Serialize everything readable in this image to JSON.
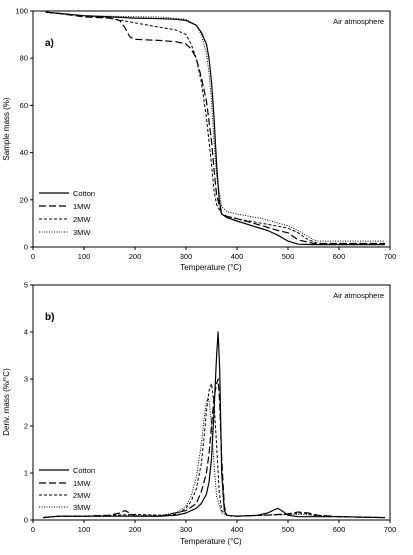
{
  "chart_data": [
    {
      "type": "line",
      "panel_label": "a)",
      "annotation": "Air atmosphere",
      "xlabel": "Temperature (°C)",
      "ylabel": "Sample mass (%)",
      "xlim": [
        0,
        700
      ],
      "ylim": [
        0,
        100
      ],
      "xticks": [
        0,
        100,
        200,
        300,
        400,
        500,
        600,
        700
      ],
      "yticks": [
        0,
        20,
        40,
        60,
        80,
        100
      ],
      "grid": false,
      "legend_position": "lower-left",
      "series": [
        {
          "name": "Cotton",
          "style": "solid",
          "x": [
            25,
            50,
            100,
            150,
            200,
            250,
            280,
            300,
            320,
            330,
            340,
            345,
            350,
            355,
            360,
            365,
            370,
            380,
            400,
            430,
            460,
            480,
            500,
            520,
            550,
            600,
            650,
            690
          ],
          "y": [
            99.5,
            99,
            98,
            97.5,
            97,
            96.8,
            96.5,
            96,
            94,
            91,
            86,
            80,
            70,
            55,
            35,
            20,
            14,
            12.5,
            11,
            9,
            7,
            5,
            2.5,
            1.2,
            1,
            1,
            1,
            1
          ]
        },
        {
          "name": "1MW",
          "style": "dashed",
          "x": [
            25,
            50,
            100,
            150,
            170,
            180,
            190,
            200,
            250,
            280,
            300,
            310,
            320,
            330,
            340,
            350,
            355,
            360,
            370,
            380,
            400,
            450,
            480,
            500,
            520,
            550,
            600,
            690
          ],
          "y": [
            99.5,
            99,
            97.5,
            97,
            96,
            93,
            89,
            88,
            87.5,
            87,
            86,
            84,
            80,
            72,
            62,
            45,
            33,
            22,
            14,
            13,
            12,
            9,
            7,
            6,
            3,
            1.5,
            1.5,
            1.5
          ]
        },
        {
          "name": "2MW",
          "style": "short-dashed",
          "x": [
            25,
            50,
            100,
            150,
            200,
            250,
            280,
            300,
            310,
            320,
            330,
            340,
            350,
            355,
            360,
            370,
            380,
            400,
            450,
            500,
            520,
            540,
            560,
            600,
            690
          ],
          "y": [
            99.5,
            99,
            98,
            97,
            95,
            93,
            92,
            90,
            86,
            80,
            70,
            55,
            35,
            24,
            18,
            14,
            13,
            12,
            10,
            8,
            6,
            3,
            1.5,
            1.5,
            1.5
          ]
        },
        {
          "name": "3MW",
          "style": "dotted",
          "x": [
            25,
            50,
            100,
            150,
            200,
            250,
            300,
            320,
            330,
            340,
            345,
            350,
            355,
            360,
            370,
            380,
            400,
            450,
            500,
            520,
            550,
            560,
            600,
            690
          ],
          "y": [
            99.5,
            99,
            98,
            97.8,
            97.6,
            97.4,
            96.5,
            94,
            90,
            82,
            74,
            62,
            45,
            30,
            17,
            15,
            14,
            12,
            9,
            7,
            3,
            2.5,
            2.5,
            2.5
          ]
        }
      ]
    },
    {
      "type": "line",
      "panel_label": "b)",
      "annotation": "Air atmosphere",
      "xlabel": "Temperature (°C)",
      "ylabel": "Deriv. mass (%/°C)",
      "xlim": [
        0,
        700
      ],
      "ylim": [
        0,
        5
      ],
      "xticks": [
        0,
        100,
        200,
        300,
        400,
        500,
        600,
        700
      ],
      "yticks": [
        0,
        1,
        2,
        3,
        4,
        5
      ],
      "grid": false,
      "legend_position": "lower-left",
      "series": [
        {
          "name": "Cotton",
          "style": "solid",
          "x": [
            20,
            50,
            100,
            200,
            250,
            280,
            300,
            320,
            330,
            340,
            345,
            350,
            355,
            360,
            363,
            366,
            370,
            375,
            380,
            400,
            440,
            460,
            470,
            480,
            490,
            500,
            520,
            550,
            600,
            690
          ],
          "y": [
            0.05,
            0.08,
            0.08,
            0.08,
            0.08,
            0.1,
            0.15,
            0.25,
            0.35,
            0.55,
            0.8,
            1.3,
            2.3,
            3.5,
            4.0,
            3.2,
            1.0,
            0.2,
            0.1,
            0.08,
            0.1,
            0.15,
            0.2,
            0.25,
            0.18,
            0.1,
            0.07,
            0.07,
            0.07,
            0.05
          ]
        },
        {
          "name": "1MW",
          "style": "dashed",
          "x": [
            20,
            50,
            100,
            150,
            170,
            180,
            190,
            200,
            250,
            300,
            320,
            330,
            340,
            345,
            350,
            355,
            360,
            363,
            366,
            370,
            375,
            380,
            400,
            450,
            500,
            520,
            540,
            560,
            600,
            690
          ],
          "y": [
            0.05,
            0.08,
            0.08,
            0.1,
            0.15,
            0.2,
            0.15,
            0.08,
            0.08,
            0.2,
            0.35,
            0.6,
            1.0,
            1.4,
            2.0,
            2.6,
            2.9,
            3.0,
            2.5,
            1.3,
            0.3,
            0.1,
            0.08,
            0.1,
            0.13,
            0.17,
            0.15,
            0.1,
            0.07,
            0.05
          ]
        },
        {
          "name": "2MW",
          "style": "short-dashed",
          "x": [
            20,
            50,
            100,
            150,
            200,
            250,
            280,
            300,
            310,
            320,
            330,
            335,
            340,
            345,
            350,
            355,
            360,
            365,
            370,
            380,
            400,
            450,
            500,
            530,
            550,
            600,
            690
          ],
          "y": [
            0.05,
            0.08,
            0.08,
            0.1,
            0.12,
            0.1,
            0.12,
            0.25,
            0.4,
            0.65,
            1.2,
            1.7,
            2.3,
            2.75,
            2.9,
            2.5,
            1.6,
            0.6,
            0.2,
            0.1,
            0.08,
            0.1,
            0.12,
            0.15,
            0.1,
            0.07,
            0.05
          ]
        },
        {
          "name": "3MW",
          "style": "dotted",
          "x": [
            20,
            50,
            100,
            150,
            200,
            250,
            280,
            300,
            310,
            320,
            330,
            335,
            340,
            343,
            346,
            350,
            355,
            360,
            370,
            380,
            400,
            450,
            500,
            530,
            550,
            600,
            690
          ],
          "y": [
            0.05,
            0.08,
            0.08,
            0.08,
            0.1,
            0.1,
            0.15,
            0.3,
            0.5,
            0.9,
            1.6,
            2.1,
            2.5,
            2.6,
            2.5,
            2.0,
            1.2,
            0.5,
            0.15,
            0.1,
            0.08,
            0.1,
            0.12,
            0.12,
            0.1,
            0.07,
            0.05
          ]
        }
      ]
    }
  ]
}
